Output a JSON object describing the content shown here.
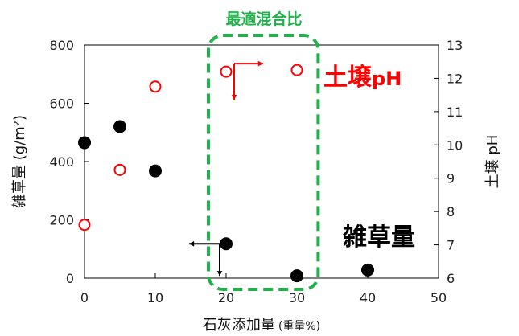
{
  "chart_data": {
    "type": "scatter",
    "title": "",
    "xlabel_main": "石灰添加量",
    "xlabel_unit": "(重量%)",
    "ylabel_left": "雑草量 (g/m²)",
    "ylabel_right": "土壌 pH",
    "xlim": [
      0,
      50
    ],
    "ylim_left": [
      0,
      800
    ],
    "ylim_right": [
      6,
      13
    ],
    "xticks": [
      "0",
      "10",
      "20",
      "30",
      "40",
      "50"
    ],
    "yticks_left": [
      "0",
      "200",
      "400",
      "600",
      "800"
    ],
    "yticks_right": [
      "6",
      "7",
      "8",
      "9",
      "10",
      "11",
      "12",
      "13"
    ],
    "grid": false,
    "series": [
      {
        "name": "雑草量",
        "axis": "left",
        "marker": "filled-circle",
        "color": "#000000",
        "x": [
          0,
          5,
          10,
          20,
          30,
          40
        ],
        "y": [
          465,
          520,
          368,
          118,
          8,
          28
        ]
      },
      {
        "name": "土壌pH",
        "axis": "right",
        "marker": "open-circle",
        "color": "#ff0000",
        "x": [
          0,
          5,
          10,
          20,
          30
        ],
        "y": [
          7.6,
          9.25,
          11.75,
          12.2,
          12.25
        ]
      }
    ],
    "annotations": {
      "optimal_label": "最適混合比",
      "optimal_range_x": [
        17.5,
        33
      ],
      "optimal_color": "#22b14c",
      "weed_label": "雑草量",
      "ph_label_main": "土壌",
      "ph_label_suffix": "pH"
    }
  }
}
